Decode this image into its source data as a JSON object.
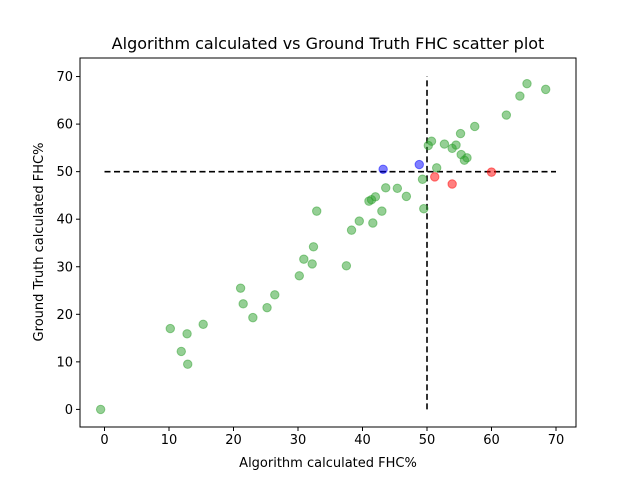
{
  "chart_data": {
    "type": "scatter",
    "title": "Algorithm calculated vs Ground Truth FHC scatter plot",
    "xlabel": "Algorithm calculated FHC%",
    "ylabel": "Ground Truth calculated FHC%",
    "xlim": [
      -3.8,
      73.1
    ],
    "ylim": [
      -3.7,
      73.9
    ],
    "xticks": [
      0,
      10,
      20,
      30,
      40,
      50,
      60,
      70
    ],
    "yticks": [
      0,
      10,
      20,
      30,
      40,
      50,
      60,
      70
    ],
    "grid": false,
    "reference_lines": [
      {
        "orientation": "horizontal",
        "y": 50,
        "x_range": [
          0,
          70
        ],
        "style": "dashed",
        "color": "#000000"
      },
      {
        "orientation": "vertical",
        "x": 50,
        "y_range": [
          0,
          70
        ],
        "style": "dashed",
        "color": "#000000"
      }
    ],
    "series": [
      {
        "color": "#2ca02c",
        "points": [
          [
            -0.6,
            0.0
          ],
          [
            10.2,
            17.0
          ],
          [
            11.9,
            12.2
          ],
          [
            12.8,
            15.9
          ],
          [
            12.9,
            9.5
          ],
          [
            15.3,
            17.9
          ],
          [
            21.1,
            25.5
          ],
          [
            21.5,
            22.2
          ],
          [
            23.0,
            19.3
          ],
          [
            25.2,
            21.4
          ],
          [
            26.4,
            24.1
          ],
          [
            30.2,
            28.1
          ],
          [
            30.9,
            31.6
          ],
          [
            32.2,
            30.6
          ],
          [
            32.4,
            34.2
          ],
          [
            32.9,
            41.7
          ],
          [
            37.5,
            30.2
          ],
          [
            38.3,
            37.7
          ],
          [
            39.5,
            39.6
          ],
          [
            41.0,
            43.8
          ],
          [
            41.4,
            44.1
          ],
          [
            41.6,
            39.2
          ],
          [
            42.0,
            44.7
          ],
          [
            43.0,
            41.7
          ],
          [
            43.6,
            46.6
          ],
          [
            45.4,
            46.5
          ],
          [
            46.8,
            44.8
          ],
          [
            49.3,
            48.4
          ],
          [
            49.5,
            42.2
          ],
          [
            50.2,
            55.5
          ],
          [
            50.7,
            56.4
          ],
          [
            51.5,
            50.8
          ],
          [
            52.7,
            55.8
          ],
          [
            53.9,
            54.9
          ],
          [
            54.5,
            55.6
          ],
          [
            55.2,
            58.0
          ],
          [
            55.3,
            53.6
          ],
          [
            55.8,
            52.4
          ],
          [
            56.2,
            52.9
          ],
          [
            57.4,
            59.5
          ],
          [
            62.3,
            61.9
          ],
          [
            64.4,
            65.9
          ],
          [
            65.5,
            68.5
          ],
          [
            68.4,
            67.3
          ]
        ]
      },
      {
        "color": "#0000ff",
        "points": [
          [
            43.2,
            50.5
          ],
          [
            48.8,
            51.5
          ]
        ]
      },
      {
        "color": "#ff0000",
        "points": [
          [
            51.2,
            48.9
          ],
          [
            53.9,
            47.4
          ],
          [
            60.0,
            49.9
          ]
        ]
      }
    ]
  }
}
